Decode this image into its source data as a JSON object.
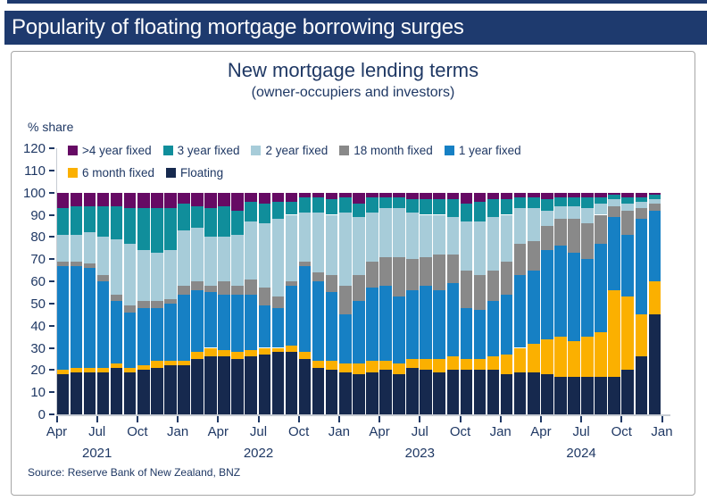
{
  "header": {
    "title": "Popularity of floating mortgage borrowing surges"
  },
  "colors": {
    "accent": "#1e3a6e",
    "text_navy": "#1f3864",
    "axis_gray": "#c7ccd3"
  },
  "chart_data": {
    "type": "bar",
    "stacking": "100%",
    "title": "New mortgage lending terms",
    "subtitle": "(owner-occupiers and investors)",
    "ylabel": "% share",
    "ylim": [
      0,
      120
    ],
    "y_ticks": [
      0,
      10,
      20,
      30,
      40,
      50,
      60,
      70,
      80,
      90,
      100,
      110,
      120
    ],
    "x_tick_labels": [
      "Apr",
      "Jul",
      "Oct",
      "Jan",
      "Apr",
      "Jul",
      "Oct",
      "Jan",
      "Apr",
      "Jul",
      "Oct",
      "Jan",
      "Apr",
      "Jul",
      "Oct",
      "Jan"
    ],
    "year_labels": [
      {
        "label": "2021",
        "tick_index": 1
      },
      {
        "label": "2022",
        "tick_index": 5
      },
      {
        "label": "2023",
        "tick_index": 9
      },
      {
        "label": "2024",
        "tick_index": 13
      }
    ],
    "months": [
      "Apr 2021",
      "May 2021",
      "Jun 2021",
      "Jul 2021",
      "Aug 2021",
      "Sep 2021",
      "Oct 2021",
      "Nov 2021",
      "Dec 2021",
      "Jan 2022",
      "Feb 2022",
      "Mar 2022",
      "Apr 2022",
      "May 2022",
      "Jun 2022",
      "Jul 2022",
      "Aug 2022",
      "Sep 2022",
      "Oct 2022",
      "Nov 2022",
      "Dec 2022",
      "Jan 2023",
      "Feb 2023",
      "Mar 2023",
      "Apr 2023",
      "May 2023",
      "Jun 2023",
      "Jul 2023",
      "Aug 2023",
      "Sep 2023",
      "Oct 2023",
      "Nov 2023",
      "Dec 2023",
      "Jan 2024",
      "Feb 2024",
      "Mar 2024",
      "Apr 2024",
      "May 2024",
      "Jun 2024",
      "Jul 2024",
      "Aug 2024",
      "Sep 2024",
      "Oct 2024",
      "Nov 2024",
      "Dec 2024"
    ],
    "series": [
      {
        "name": "Floating",
        "color": "#16294e",
        "values": [
          18,
          19,
          19,
          19,
          21,
          19,
          20,
          21,
          22,
          22,
          25,
          26,
          26,
          25,
          26,
          27,
          28,
          28,
          25,
          21,
          20,
          19,
          18,
          19,
          20,
          18,
          21,
          20,
          19,
          20,
          20,
          20,
          20,
          18,
          19,
          19,
          18,
          17,
          17,
          17,
          17,
          17,
          20,
          26,
          45
        ]
      },
      {
        "name": "6 month fixed",
        "color": "#fbb000",
        "values": [
          2,
          2,
          2,
          2,
          2,
          2,
          2,
          3,
          2,
          2,
          3,
          4,
          3,
          3,
          3,
          3,
          2,
          3,
          3,
          3,
          4,
          4,
          5,
          5,
          4,
          5,
          4,
          5,
          6,
          6,
          5,
          5,
          6,
          9,
          11,
          13,
          16,
          18,
          16,
          18,
          20,
          39,
          33,
          19,
          15
        ]
      },
      {
        "name": "1 year fixed",
        "color": "#1680c4",
        "values": [
          47,
          46,
          45,
          39,
          28,
          25,
          26,
          24,
          26,
          30,
          28,
          25,
          25,
          26,
          25,
          19,
          18,
          27,
          39,
          36,
          31,
          22,
          28,
          33,
          34,
          30,
          31,
          33,
          31,
          33,
          23,
          22,
          25,
          27,
          33,
          33,
          40,
          41,
          40,
          35,
          40,
          33,
          28,
          43,
          32
        ]
      },
      {
        "name": "18 month fixed",
        "color": "#898989",
        "values": [
          2,
          2,
          2,
          3,
          3,
          3,
          3,
          3,
          2,
          4,
          4,
          3,
          6,
          4,
          7,
          8,
          5,
          2,
          2,
          4,
          8,
          13,
          12,
          12,
          13,
          18,
          14,
          13,
          16,
          13,
          17,
          16,
          14,
          15,
          14,
          13,
          11,
          12,
          15,
          16,
          13,
          5,
          11,
          5,
          3
        ]
      },
      {
        "name": "2 year fixed",
        "color": "#a7ccd9",
        "values": [
          12,
          12,
          14,
          17,
          25,
          28,
          23,
          22,
          22,
          25,
          24,
          22,
          20,
          23,
          26,
          29,
          35,
          30,
          22,
          27,
          27,
          33,
          26,
          22,
          22,
          22,
          21,
          19,
          18,
          17,
          22,
          24,
          24,
          21,
          16,
          15,
          7,
          6,
          6,
          7,
          5,
          3,
          3,
          3,
          2
        ]
      },
      {
        "name": "3 year fixed",
        "color": "#108e9b",
        "values": [
          12,
          13,
          12,
          14,
          15,
          16,
          19,
          20,
          19,
          12,
          10,
          13,
          14,
          11,
          9,
          9,
          8,
          6,
          7,
          7,
          7,
          7,
          6,
          7,
          5,
          5,
          6,
          7,
          7,
          8,
          8,
          9,
          8,
          7,
          5,
          5,
          5,
          4,
          4,
          5,
          3,
          2,
          3,
          2,
          2
        ]
      },
      {
        "name": ">4 year fixed",
        "color": "#660a64",
        "values": [
          7,
          6,
          6,
          6,
          6,
          7,
          7,
          7,
          7,
          5,
          6,
          7,
          6,
          8,
          4,
          5,
          4,
          4,
          2,
          2,
          3,
          2,
          5,
          2,
          2,
          2,
          3,
          3,
          3,
          3,
          5,
          4,
          3,
          3,
          2,
          2,
          3,
          2,
          2,
          2,
          2,
          1,
          2,
          2,
          1
        ]
      }
    ],
    "legend_rows": [
      [
        ">4 year fixed",
        "3 year fixed",
        "2 year fixed",
        "18 month fixed",
        "1 year fixed"
      ],
      [
        "6 month fixed",
        "Floating"
      ]
    ],
    "legend_position": "top-inside",
    "grid": false,
    "source": "Source: Reserve Bank of New Zealand, BNZ"
  }
}
